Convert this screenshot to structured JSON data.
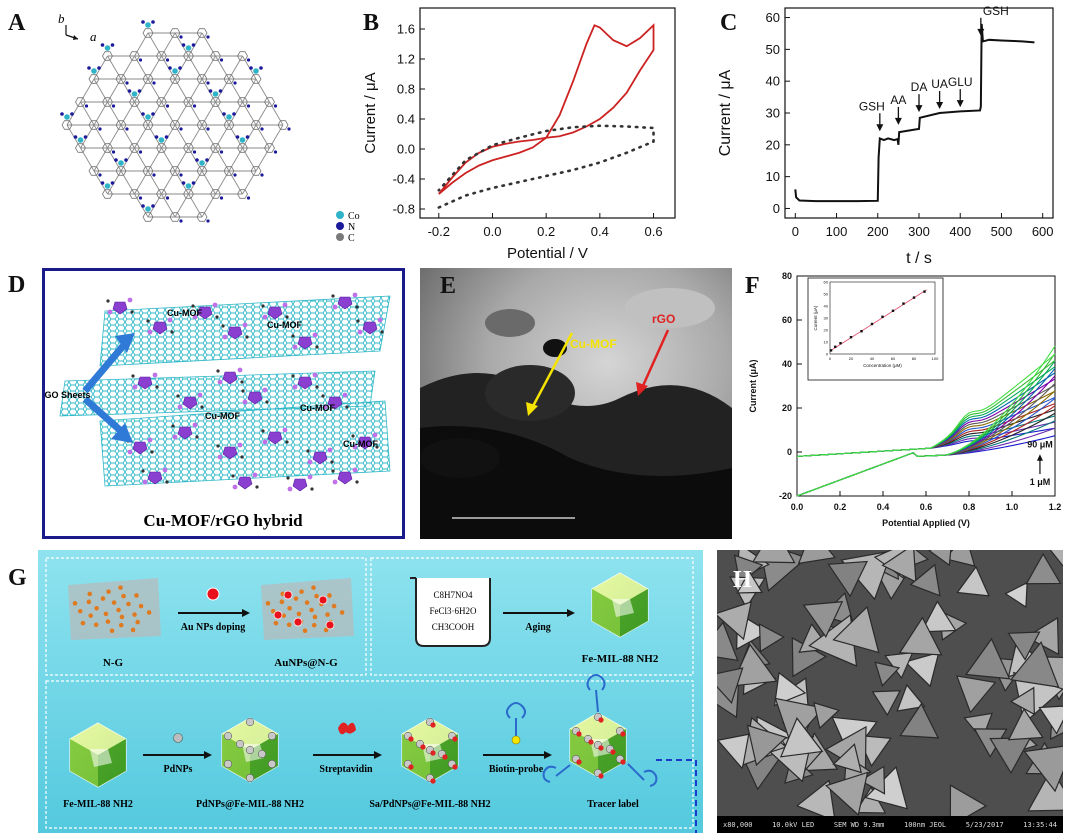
{
  "labels": {
    "a": "A",
    "b": "B",
    "c": "C",
    "d": "D",
    "e": "E",
    "f": "F",
    "g": "G",
    "h": "H"
  },
  "panel_a": {
    "axis_b": "b",
    "axis_a": "a",
    "legend": [
      "Co",
      "N",
      "C"
    ],
    "colors": {
      "co": "#2eb3c8",
      "n": "#1a1a9a",
      "c": "#7a7a7a"
    }
  },
  "chart_b": {
    "type": "line",
    "xlabel": "Potential / V",
    "ylabel": "Current / μA",
    "xlim": [
      -0.27,
      0.68
    ],
    "ylim": [
      -0.92,
      1.88
    ],
    "xticks": [
      "-0.2",
      "0.0",
      "0.2",
      "0.4",
      "0.6"
    ],
    "xtick_values": [
      -0.2,
      0,
      0.2,
      0.4,
      0.6
    ],
    "yticks": [
      "-0.8",
      "-0.4",
      "0.0",
      "0.4",
      "0.8",
      "1.2",
      "1.6"
    ],
    "ytick_values": [
      -0.8,
      -0.4,
      0,
      0.4,
      0.8,
      1.2,
      1.6
    ],
    "series": [
      {
        "style": "solid",
        "color": "#cc2222",
        "x": [
          -0.2,
          -0.15,
          -0.1,
          -0.05,
          0,
          0.05,
          0.1,
          0.15,
          0.2,
          0.25,
          0.3,
          0.35,
          0.38,
          0.4,
          0.45,
          0.5,
          0.55,
          0.6,
          0.6,
          0.55,
          0.5,
          0.45,
          0.4,
          0.35,
          0.3,
          0.25,
          0.2,
          0.15,
          0.1,
          0.05,
          0,
          -0.05,
          -0.1,
          -0.15,
          -0.2
        ],
        "y": [
          -0.6,
          -0.45,
          -0.32,
          -0.22,
          -0.15,
          -0.1,
          -0.05,
          0.02,
          0.15,
          0.45,
          0.9,
          1.4,
          1.65,
          1.62,
          1.45,
          1.37,
          1.48,
          1.65,
          1.32,
          1.05,
          0.75,
          0.55,
          0.4,
          0.3,
          0.22,
          0.17,
          0.15,
          0.12,
          0.1,
          0.07,
          0.03,
          -0.05,
          -0.18,
          -0.38,
          -0.6
        ]
      },
      {
        "style": "dotted",
        "color": "#333333",
        "x": [
          -0.2,
          -0.1,
          0,
          0.1,
          0.2,
          0.3,
          0.4,
          0.5,
          0.6,
          0.6,
          0.5,
          0.4,
          0.3,
          0.2,
          0.1,
          0,
          -0.1,
          -0.2
        ],
        "y": [
          -0.78,
          -0.62,
          -0.52,
          -0.44,
          -0.36,
          -0.28,
          -0.18,
          -0.05,
          0.1,
          0.28,
          0.3,
          0.31,
          0.29,
          0.24,
          0.15,
          0.05,
          -0.15,
          -0.55
        ]
      }
    ]
  },
  "chart_c": {
    "type": "line",
    "xlabel": "t / s",
    "ylabel": "Current / μA",
    "xlim": [
      -25,
      625
    ],
    "ylim": [
      -3,
      63
    ],
    "xticks": [
      "0",
      "100",
      "200",
      "300",
      "400",
      "500",
      "600"
    ],
    "xtick_values": [
      0,
      100,
      200,
      300,
      400,
      500,
      600
    ],
    "yticks": [
      "0",
      "10",
      "20",
      "30",
      "40",
      "50",
      "60"
    ],
    "ytick_values": [
      0,
      10,
      20,
      30,
      40,
      50,
      60
    ],
    "series": [
      {
        "color": "#111111",
        "x": [
          0,
          2,
          10,
          50,
          100,
          150,
          200,
          202,
          205,
          215,
          225,
          240,
          248,
          250,
          252,
          300,
          302,
          350,
          400,
          448,
          450,
          452,
          455,
          470,
          500,
          550,
          580
        ],
        "y": [
          6,
          3.5,
          2.5,
          2.3,
          2.3,
          2.3,
          2.4,
          16,
          22,
          21.5,
          22,
          21.5,
          21.8,
          20,
          24,
          25,
          28.5,
          30,
          30.5,
          30.8,
          32,
          58,
          52.5,
          53,
          52.8,
          52.5,
          52.2
        ]
      }
    ],
    "annotations": [
      {
        "text": "GSH",
        "x": 205,
        "arrow_y": 23
      },
      {
        "text": "AA",
        "x": 250,
        "arrow_y": 25
      },
      {
        "text": "DA",
        "x": 300,
        "arrow_y": 29
      },
      {
        "text": "UA",
        "x": 350,
        "arrow_y": 30
      },
      {
        "text": "GLU",
        "x": 400,
        "arrow_y": 30.6
      },
      {
        "text": "GSH",
        "x": 450,
        "arrow_y": 53
      }
    ]
  },
  "panel_d": {
    "labels": [
      "Cu-MOF",
      "Cu-MOF",
      "Cu-MOF",
      "Cu-MOF",
      "Cu-MOF",
      "rGO Sheets"
    ],
    "caption": "Cu-MOF/rGO hybrid",
    "colors": {
      "frame": "#1a1a8c",
      "sheet": "#2fb8c8",
      "mof": "#8a3fd0",
      "arrow": "#2f7ad6"
    }
  },
  "panel_e": {
    "cu_label": "Cu-MOF",
    "rgo_label": "rGO",
    "cu_color": "#f5e400",
    "rgo_color": "#e02222"
  },
  "chart_f": {
    "type": "line",
    "xlabel": "Potential Applied (V)",
    "ylabel": "Current (μA)",
    "xlim": [
      0,
      1.2
    ],
    "ylim": [
      -20,
      80
    ],
    "xticks": [
      "0.0",
      "0.2",
      "0.4",
      "0.6",
      "0.8",
      "1.0",
      "1.2"
    ],
    "xtick_values": [
      0,
      0.2,
      0.4,
      0.6,
      0.8,
      1,
      1.2
    ],
    "yticks": [
      "-20",
      "0",
      "20",
      "40",
      "60",
      "80"
    ],
    "ytick_values": [
      -20,
      0,
      20,
      40,
      60,
      80
    ],
    "annot_top": "90 μM",
    "annot_bottom": "1 μM",
    "peaks": [
      8,
      12,
      16,
      20,
      24,
      28,
      32,
      36,
      40,
      44,
      48,
      52,
      56
    ],
    "colors": [
      "#1c1ccc",
      "#6a2ab0",
      "#0a7a7a",
      "#222222",
      "#aa2222",
      "#2255cc",
      "#8a6a00",
      "#5a5a5a",
      "#7a00aa",
      "#0066aa",
      "#00aa55",
      "#33bb33",
      "#44dd44"
    ],
    "inset": {
      "xlabel": "Concentration (μM)",
      "ylabel": "Current (μA)",
      "xlim": [
        0,
        100
      ],
      "ylim": [
        0,
        60
      ],
      "xticks": [
        "0",
        "20",
        "40",
        "60",
        "80",
        "100"
      ],
      "xtick_values": [
        0,
        20,
        40,
        60,
        80,
        100
      ],
      "yticks": [
        "0",
        "10",
        "20",
        "30",
        "40",
        "50",
        "60"
      ],
      "ytick_values": [
        0,
        10,
        20,
        30,
        40,
        50,
        60
      ],
      "x": [
        1,
        5,
        10,
        20,
        30,
        40,
        50,
        60,
        70,
        80,
        90
      ],
      "y": [
        3,
        6,
        9,
        14,
        19,
        25,
        31,
        36,
        42,
        47,
        52
      ]
    }
  },
  "panel_g": {
    "ng_label": "N-G",
    "au_label": "Au NPs doping",
    "au_ng_label": "AuNPs@N-G",
    "beaker": [
      "C8H7NO4",
      "FeCl3·6H2O",
      "CH3COOH"
    ],
    "aging_label": "Aging",
    "fe_mil_label": "Fe-MIL-88 NH2",
    "fe_mil2_label": "Fe-MIL-88 NH2",
    "pdnps_label": "PdNPs",
    "pdnps_fe_label": "PdNPs@Fe-MIL-88 NH2",
    "strep_label": "Streptavidin",
    "sa_label": "Sa/PdNPs@Fe-MIL-88 NH2",
    "biotin_label": "Biotin-probe",
    "tracer_label": "Tracer label"
  },
  "panel_h": {
    "infobar": [
      "x80,000",
      "10.0kV LED",
      "SEM  WD 9.3mm",
      "100nm JEOL",
      "5/23/2017",
      "13:35:44"
    ]
  }
}
